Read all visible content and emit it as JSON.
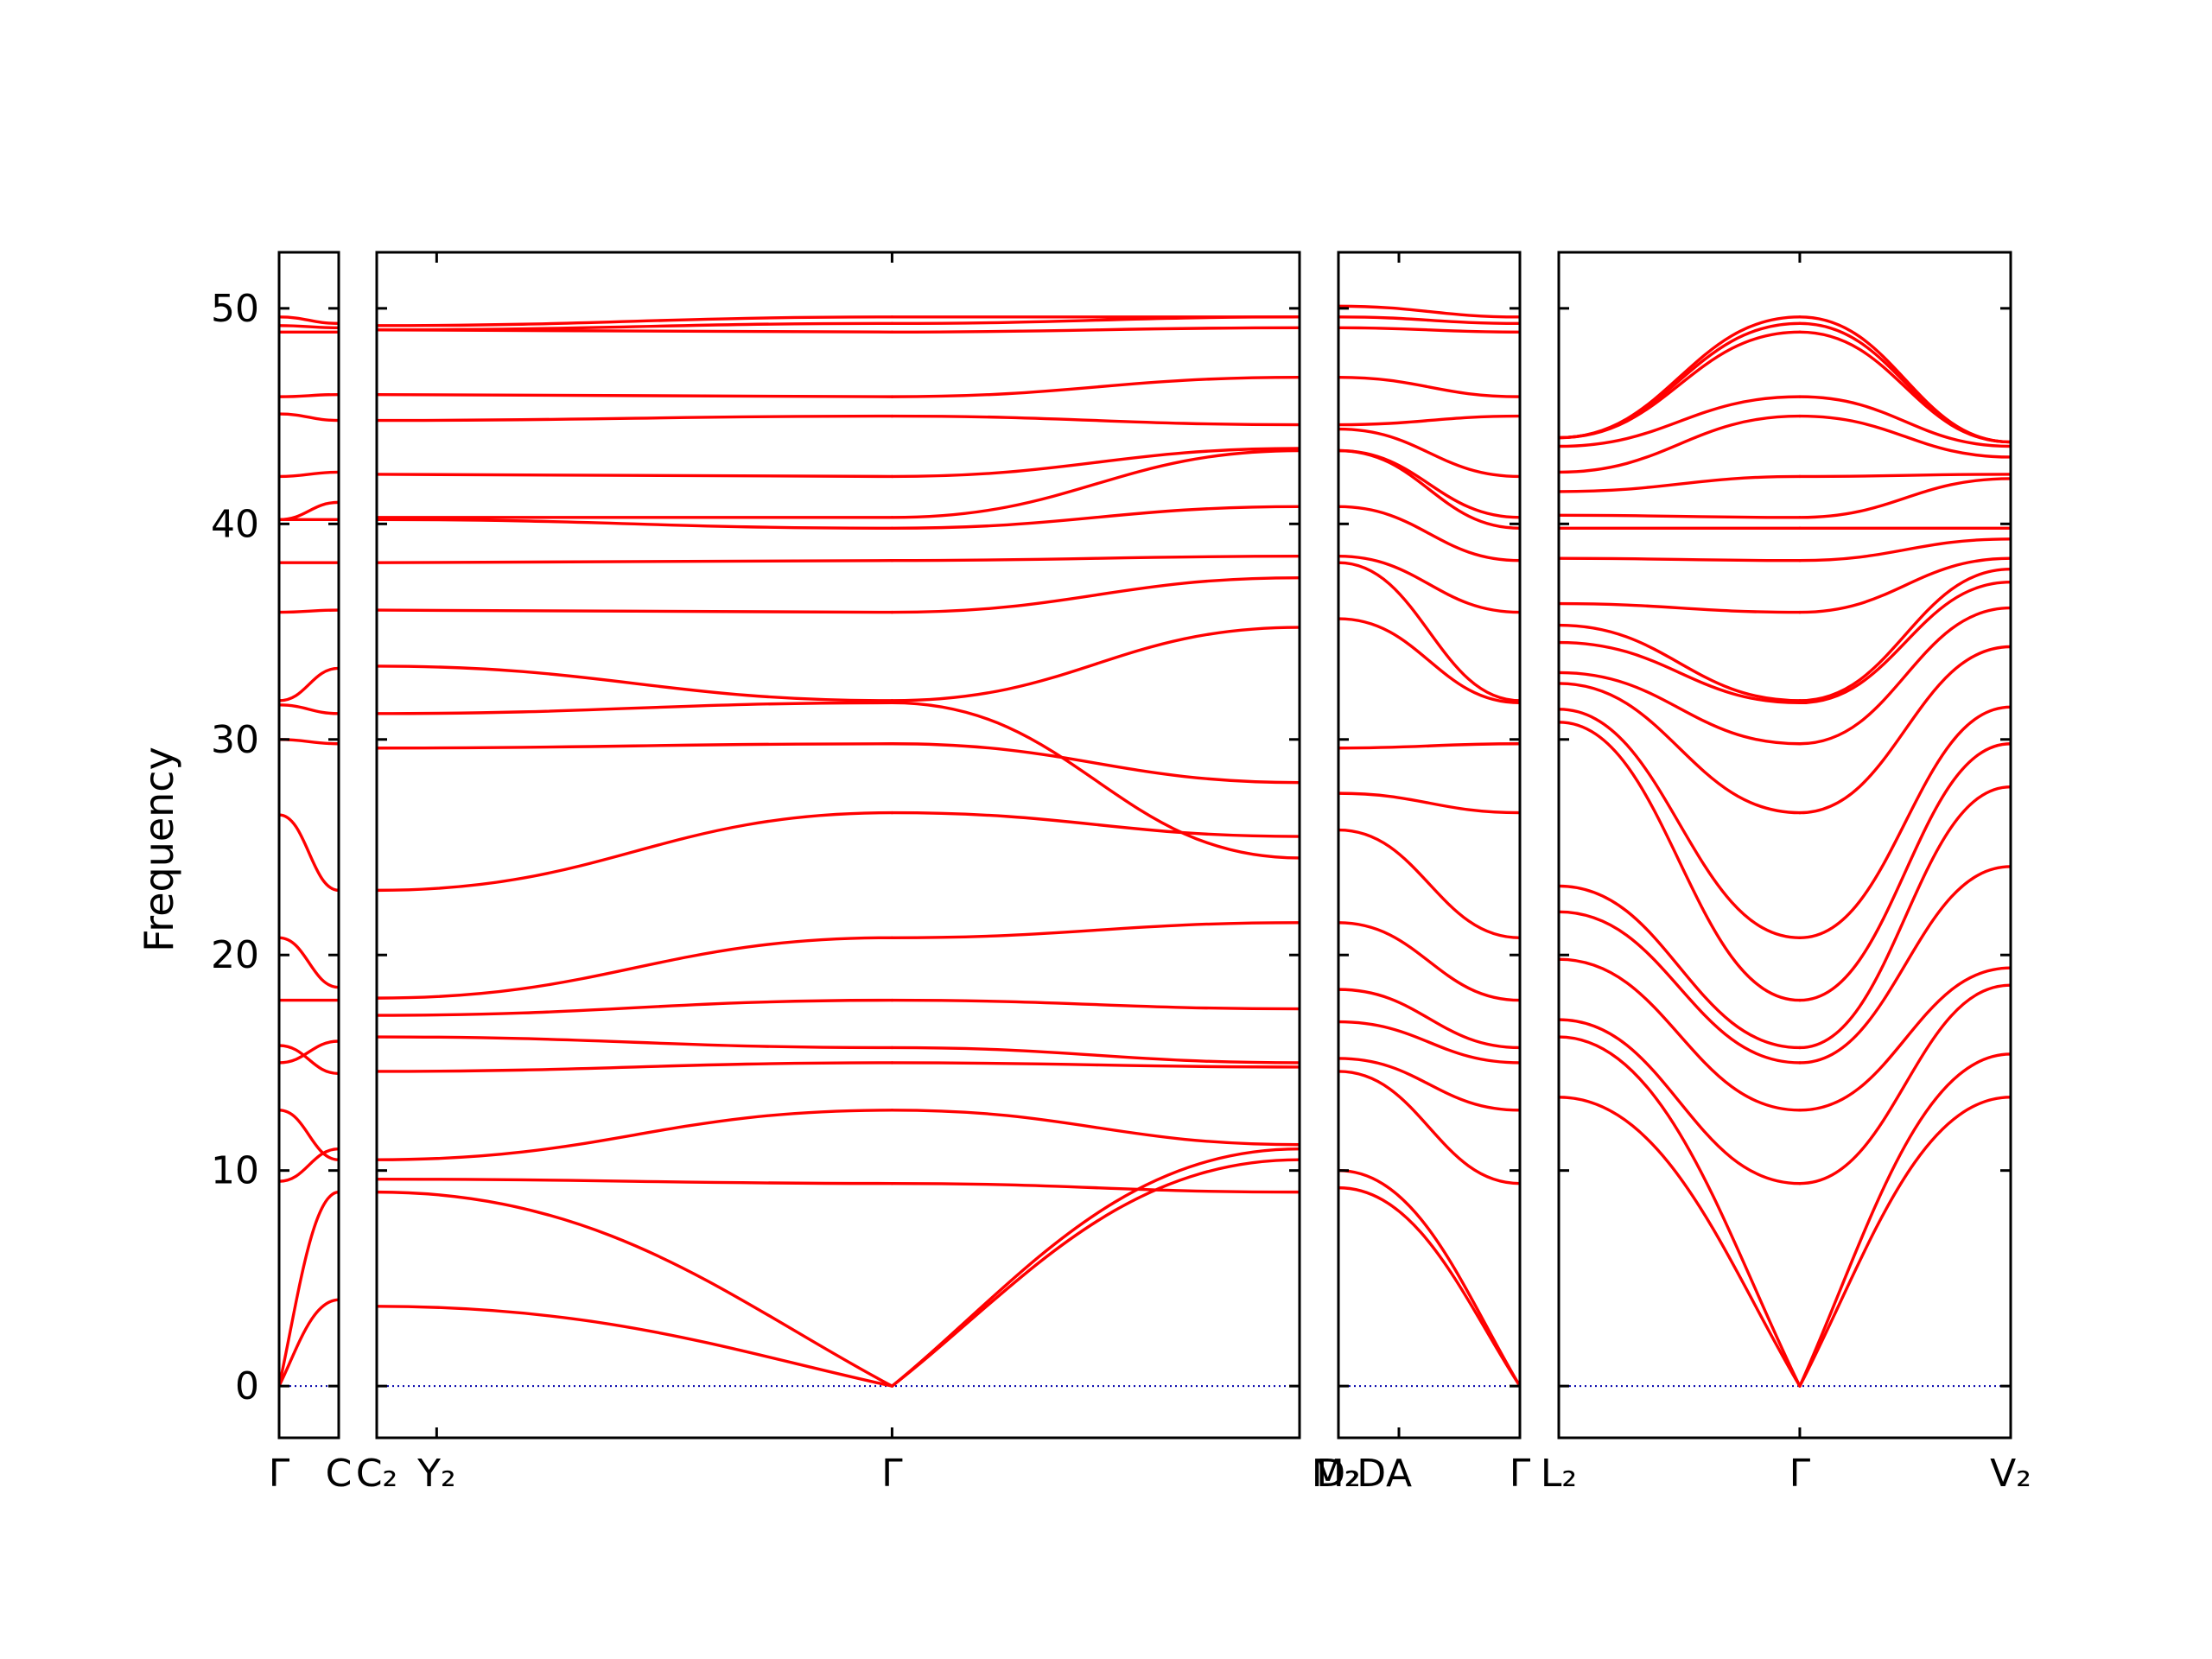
{
  "chart_data": {
    "type": "line",
    "title": "",
    "ylabel": "Frequency",
    "ylim": [
      -2.4,
      52.6
    ],
    "yticks": [
      0,
      10,
      20,
      30,
      40,
      50
    ],
    "grid": false,
    "colors": {
      "bands": "#ff0000",
      "zero_line": "#0000aa",
      "frame": "#000000"
    },
    "panels": [
      {
        "x_range": [
          0,
          1
        ],
        "ticks": [
          {
            "x": 0,
            "label": "Γ"
          },
          {
            "x": 1,
            "label": "C"
          }
        ],
        "gamma_x": [
          0
        ],
        "edges": [
          [
            0,
            0,
            1,
            4
          ],
          [
            0,
            0,
            1,
            9
          ],
          [
            0,
            9.5,
            1,
            11
          ],
          [
            0,
            12.8,
            1,
            10.5
          ],
          [
            0,
            15,
            1,
            16
          ],
          [
            0,
            15.8,
            1,
            14.5
          ],
          [
            0,
            17.9,
            1,
            17.9
          ],
          [
            0,
            20.8,
            1,
            18.5
          ],
          [
            0,
            26.5,
            1,
            23
          ],
          [
            0,
            30,
            1,
            29.8
          ],
          [
            0,
            31.6,
            1,
            31.2
          ],
          [
            0,
            31.8,
            1,
            33.3
          ],
          [
            0,
            35.9,
            1,
            36
          ],
          [
            0,
            38.2,
            1,
            38.2
          ],
          [
            0,
            40.2,
            1,
            41
          ],
          [
            0,
            40.2,
            1,
            40.2
          ],
          [
            0,
            42.2,
            1,
            42.4
          ],
          [
            0,
            45.1,
            1,
            44.8
          ],
          [
            0,
            45.9,
            1,
            46
          ],
          [
            0,
            48.9,
            1,
            48.9
          ],
          [
            0,
            49.2,
            1,
            49.1
          ],
          [
            0,
            49.6,
            1,
            49.3
          ]
        ]
      },
      {
        "x_range": [
          0,
          15.4
        ],
        "ticks": [
          {
            "x": 0,
            "label": "C₂"
          },
          {
            "x": 1.0,
            "label": "Y₂"
          },
          {
            "x": 8.6,
            "label": "Γ"
          },
          {
            "x": 16.0,
            "label": "M₂"
          },
          {
            "x": 16.6,
            "label": "D"
          }
        ],
        "gamma_x": [
          8.6
        ],
        "edges": [
          [
            0,
            3.7,
            8.6,
            0
          ],
          [
            0,
            9,
            8.6,
            0
          ],
          [
            8.6,
            0,
            15.4,
            11
          ],
          [
            8.6,
            0,
            15.4,
            10.5
          ],
          [
            0,
            9.6,
            8.6,
            9.4
          ],
          [
            0,
            10.5,
            8.6,
            12.8
          ],
          [
            8.6,
            9.4,
            15.4,
            9
          ],
          [
            8.6,
            12.8,
            15.4,
            11.2
          ],
          [
            0,
            14.6,
            8.6,
            15
          ],
          [
            0,
            16.2,
            8.6,
            15.7
          ],
          [
            8.6,
            15,
            15.4,
            14.8
          ],
          [
            8.6,
            15.7,
            15.4,
            15
          ],
          [
            0,
            17.2,
            8.6,
            17.9
          ],
          [
            0,
            18,
            8.6,
            20.8
          ],
          [
            8.6,
            17.9,
            15.4,
            17.5
          ],
          [
            8.6,
            20.8,
            15.4,
            21.5
          ],
          [
            0,
            23,
            8.6,
            26.6
          ],
          [
            0,
            29.6,
            8.6,
            29.8
          ],
          [
            8.6,
            26.6,
            15.4,
            25.5
          ],
          [
            8.6,
            29.8,
            15.4,
            28
          ],
          [
            0,
            31.2,
            8.6,
            31.7
          ],
          [
            0,
            33.4,
            8.6,
            31.8
          ],
          [
            8.6,
            31.7,
            15.4,
            24.5
          ],
          [
            8.6,
            31.8,
            15.4,
            35.2
          ],
          [
            0,
            36,
            8.6,
            35.9
          ],
          [
            0,
            38.2,
            8.6,
            38.3
          ],
          [
            8.6,
            35.9,
            15.4,
            37.5
          ],
          [
            8.6,
            38.3,
            15.4,
            38.5
          ],
          [
            0,
            40.2,
            8.6,
            39.8
          ],
          [
            0,
            40.3,
            8.6,
            40.3
          ],
          [
            8.6,
            39.8,
            15.4,
            40.8
          ],
          [
            8.6,
            40.3,
            15.4,
            43.4
          ],
          [
            0,
            42.3,
            8.6,
            42.2
          ],
          [
            0,
            44.8,
            8.6,
            45
          ],
          [
            8.6,
            42.2,
            15.4,
            43.5
          ],
          [
            8.6,
            45,
            15.4,
            44.6
          ],
          [
            0,
            46,
            8.6,
            45.9
          ],
          [
            0,
            49,
            8.6,
            48.9
          ],
          [
            8.6,
            45.9,
            15.4,
            46.8
          ],
          [
            8.6,
            48.9,
            15.4,
            49.1
          ],
          [
            0,
            49,
            8.6,
            49.3
          ],
          [
            0,
            49.2,
            8.6,
            49.6
          ],
          [
            8.6,
            49.3,
            15.4,
            49.6
          ],
          [
            8.6,
            49.6,
            15.4,
            49.6
          ]
        ]
      },
      {
        "x_range": [
          0,
          3
        ],
        "ticks": [
          {
            "x": 0,
            "label": "D₂"
          },
          {
            "x": 1.0,
            "label": "A"
          },
          {
            "x": 3,
            "label": "Γ"
          }
        ],
        "gamma_x": [
          3
        ],
        "edges": [
          [
            0,
            10,
            3,
            0
          ],
          [
            0,
            9.2,
            3,
            0
          ],
          [
            0,
            14.6,
            3,
            9.4
          ],
          [
            0,
            15.2,
            3,
            12.8
          ],
          [
            0,
            16.9,
            3,
            15
          ],
          [
            0,
            18.4,
            3,
            15.7
          ],
          [
            0,
            21.5,
            3,
            17.9
          ],
          [
            0,
            25.8,
            3,
            20.8
          ],
          [
            0,
            27.5,
            3,
            26.6
          ],
          [
            0,
            29.6,
            3,
            29.8
          ],
          [
            0,
            35.6,
            3,
            31.7
          ],
          [
            0,
            38.2,
            3,
            31.8
          ],
          [
            0,
            38.5,
            3,
            35.9
          ],
          [
            0,
            40.8,
            3,
            38.3
          ],
          [
            0,
            43.4,
            3,
            39.8
          ],
          [
            0,
            43.4,
            3,
            40.3
          ],
          [
            0,
            44.4,
            3,
            42.2
          ],
          [
            0,
            44.6,
            3,
            45
          ],
          [
            0,
            46.8,
            3,
            45.9
          ],
          [
            0,
            49.1,
            3,
            48.9
          ],
          [
            0,
            49.6,
            3,
            49.3
          ],
          [
            0,
            50.1,
            3,
            49.6
          ]
        ]
      },
      {
        "x_range": [
          0,
          7.5
        ],
        "ticks": [
          {
            "x": 0,
            "label": "L₂"
          },
          {
            "x": 4.0,
            "label": "Γ"
          },
          {
            "x": 7.5,
            "label": "V₂"
          }
        ],
        "gamma_x": [
          4.0
        ],
        "edges": [
          [
            0,
            13.4,
            4,
            0
          ],
          [
            0,
            16.2,
            4,
            0
          ],
          [
            4,
            0,
            7.5,
            13.4
          ],
          [
            4,
            0,
            7.5,
            15.4
          ],
          [
            0,
            17,
            4,
            9.4
          ],
          [
            0,
            19.8,
            4,
            12.8
          ],
          [
            4,
            9.4,
            7.5,
            18.6
          ],
          [
            4,
            12.8,
            7.5,
            19.4
          ],
          [
            0,
            22,
            4,
            15
          ],
          [
            0,
            23.2,
            4,
            15.7
          ],
          [
            4,
            15,
            7.5,
            24.1
          ],
          [
            4,
            15.7,
            7.5,
            27.8
          ],
          [
            0,
            30.8,
            4,
            17.9
          ],
          [
            0,
            31.4,
            4,
            20.8
          ],
          [
            4,
            17.9,
            7.5,
            29.8
          ],
          [
            4,
            20.8,
            7.5,
            31.5
          ],
          [
            0,
            32.6,
            4,
            26.6
          ],
          [
            0,
            33.1,
            4,
            29.8
          ],
          [
            4,
            26.6,
            7.5,
            34.3
          ],
          [
            4,
            29.8,
            7.5,
            36.1
          ],
          [
            0,
            34.5,
            4,
            31.7
          ],
          [
            0,
            35.3,
            4,
            31.8
          ],
          [
            4,
            31.7,
            7.5,
            37.3
          ],
          [
            4,
            31.8,
            7.5,
            37.9
          ],
          [
            0,
            36.3,
            4,
            35.9
          ],
          [
            0,
            38.4,
            4,
            38.3
          ],
          [
            4,
            35.9,
            7.5,
            38.4
          ],
          [
            4,
            38.3,
            7.5,
            39.3
          ],
          [
            0,
            39.8,
            4,
            39.8
          ],
          [
            0,
            40.4,
            4,
            40.3
          ],
          [
            4,
            39.8,
            7.5,
            39.8
          ],
          [
            4,
            40.3,
            7.5,
            42.1
          ],
          [
            0,
            41.5,
            4,
            42.2
          ],
          [
            0,
            42.4,
            4,
            45
          ],
          [
            4,
            42.2,
            7.5,
            42.3
          ],
          [
            4,
            45,
            7.5,
            43.1
          ],
          [
            0,
            43.6,
            4,
            45.9
          ],
          [
            0,
            44,
            4,
            48.9
          ],
          [
            4,
            45.9,
            7.5,
            43.6
          ],
          [
            4,
            48.9,
            7.5,
            43.8
          ],
          [
            0,
            44,
            4,
            49.3
          ],
          [
            0,
            44,
            4,
            49.6
          ],
          [
            4,
            49.3,
            7.5,
            43.8
          ],
          [
            4,
            49.6,
            7.5,
            43.8
          ]
        ]
      }
    ]
  }
}
